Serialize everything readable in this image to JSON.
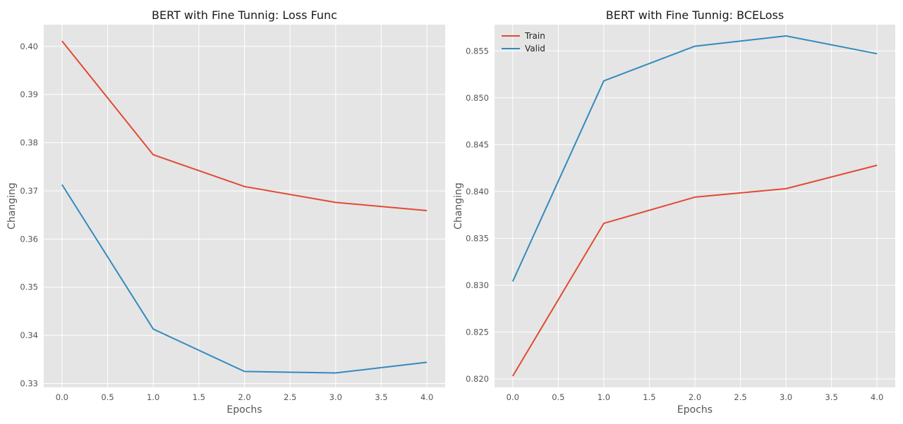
{
  "chart_data": [
    {
      "type": "line",
      "title": "BERT with Fine Tunnig: Loss Func",
      "xlabel": "Epochs",
      "ylabel": "Changing",
      "x": [
        0,
        1,
        2,
        3,
        4
      ],
      "xlim": [
        -0.2,
        4.2
      ],
      "ylim": [
        0.3292,
        0.4045
      ],
      "xticks": [
        0.0,
        0.5,
        1.0,
        1.5,
        2.0,
        2.5,
        3.0,
        3.5,
        4.0
      ],
      "xtick_labels": [
        "0.0",
        "0.5",
        "1.0",
        "1.5",
        "2.0",
        "2.5",
        "3.0",
        "3.5",
        "4.0"
      ],
      "yticks": [
        0.33,
        0.34,
        0.35,
        0.36,
        0.37,
        0.38,
        0.39,
        0.4
      ],
      "ytick_labels": [
        "0.33",
        "0.34",
        "0.35",
        "0.36",
        "0.37",
        "0.38",
        "0.39",
        "0.40"
      ],
      "grid": true,
      "series": [
        {
          "color": "#e24a33",
          "values": [
            0.4011,
            0.3775,
            0.3709,
            0.3676,
            0.3659
          ]
        },
        {
          "color": "#348abd",
          "values": [
            0.3713,
            0.3413,
            0.3325,
            0.3322,
            0.3344
          ]
        }
      ]
    },
    {
      "type": "line",
      "title": "BERT with Fine Tunnig: BCELoss",
      "xlabel": "Epochs",
      "ylabel": "Changing",
      "x": [
        0,
        1,
        2,
        3,
        4
      ],
      "xlim": [
        -0.2,
        4.2
      ],
      "ylim": [
        0.8191,
        0.8578
      ],
      "xticks": [
        0.0,
        0.5,
        1.0,
        1.5,
        2.0,
        2.5,
        3.0,
        3.5,
        4.0
      ],
      "xtick_labels": [
        "0.0",
        "0.5",
        "1.0",
        "1.5",
        "2.0",
        "2.5",
        "3.0",
        "3.5",
        "4.0"
      ],
      "yticks": [
        0.82,
        0.825,
        0.83,
        0.835,
        0.84,
        0.845,
        0.85,
        0.855
      ],
      "ytick_labels": [
        "0.820",
        "0.825",
        "0.830",
        "0.835",
        "0.840",
        "0.845",
        "0.850",
        "0.855"
      ],
      "grid": true,
      "legend": "upper-left",
      "series": [
        {
          "name": "Train",
          "color": "#e24a33",
          "values": [
            0.8203,
            0.8366,
            0.8394,
            0.8403,
            0.8428
          ]
        },
        {
          "name": "Valid",
          "color": "#348abd",
          "values": [
            0.8304,
            0.8518,
            0.8555,
            0.8566,
            0.8547
          ]
        }
      ]
    }
  ]
}
